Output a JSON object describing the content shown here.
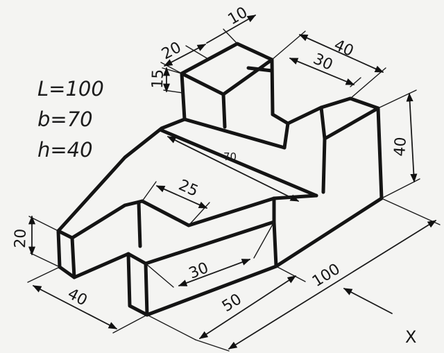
{
  "notes": {
    "length": "L=100",
    "breadth": "b=70",
    "height": "h=40"
  },
  "view_direction": "X",
  "dimensions": {
    "top_block_width": "20",
    "top_gap": "10",
    "top_block_height": "15",
    "top_depth": "40",
    "step_width": "30",
    "overall_height": "40",
    "middle_length": "70",
    "slot_width": "25",
    "end_height": "20",
    "end_width": "40",
    "slot_depth": "30",
    "base_length": "50",
    "overall_length": "100"
  }
}
